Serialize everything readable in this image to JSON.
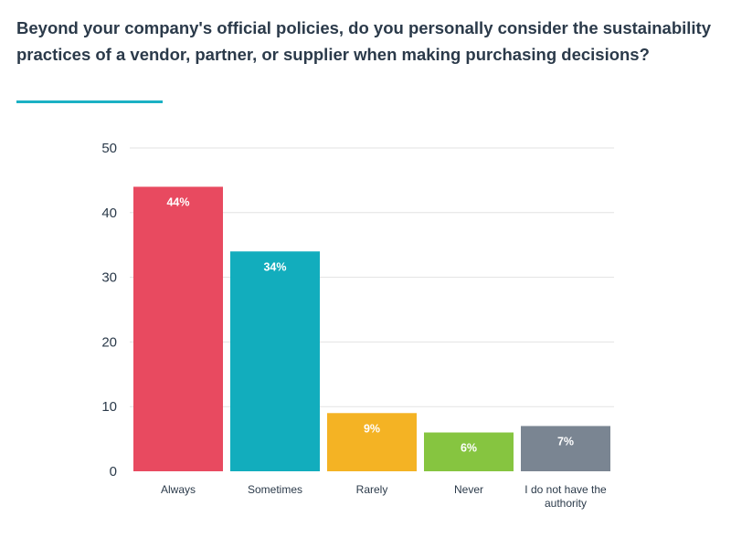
{
  "title": "Beyond your company's official policies, do you personally consider the sustainability practices of a vendor, partner, or supplier when making purchasing decisions?",
  "chart_data": {
    "type": "bar",
    "title": "Beyond your company's official policies, do you personally consider the sustainability practices of a vendor, partner, or supplier when making purchasing decisions?",
    "xlabel": "",
    "ylabel": "",
    "ylim": [
      0,
      50
    ],
    "yticks": [
      0,
      10,
      20,
      30,
      40,
      50
    ],
    "categories": [
      [
        "Always"
      ],
      [
        "Sometimes"
      ],
      [
        "Rarely"
      ],
      [
        "Never"
      ],
      [
        "I do not have the",
        "authority"
      ]
    ],
    "values": [
      44,
      34,
      9,
      6,
      7
    ],
    "data_labels": [
      "44%",
      "34%",
      "9%",
      "6%",
      "7%"
    ],
    "colors": [
      "#e84a60",
      "#12adbd",
      "#f4b324",
      "#86c540",
      "#7a8592"
    ],
    "grid": true,
    "grid_color": "#e3e3e3",
    "accent_color": "#1bb1c4",
    "legend": "none"
  }
}
